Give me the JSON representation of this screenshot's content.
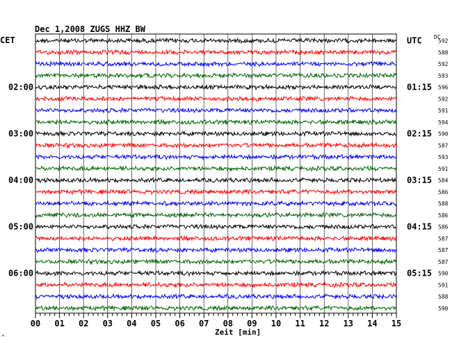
{
  "chart_data": {
    "type": "line",
    "title": "Dec 1,2008   ZUGS HHZ BW",
    "left_axis_label": "CET",
    "right_axis_label": "UTC",
    "right_column_label": "DC",
    "xlabel": "Zeit [min]",
    "xlim": [
      0,
      15
    ],
    "x_ticks": [
      "00",
      "01",
      "02",
      "03",
      "04",
      "05",
      "06",
      "07",
      "08",
      "09",
      "10",
      "11",
      "12",
      "13",
      "14",
      "15"
    ],
    "trace_colors": [
      "#000000",
      "#ff0000",
      "#0000ff",
      "#006400"
    ],
    "cet_labels": [
      {
        "row": 4,
        "text": "02:00"
      },
      {
        "row": 8,
        "text": "03:00"
      },
      {
        "row": 12,
        "text": "04:00"
      },
      {
        "row": 16,
        "text": "05:00"
      },
      {
        "row": 20,
        "text": "06:00"
      }
    ],
    "utc_labels": [
      {
        "row": 0,
        "text": "UTC"
      },
      {
        "row": 4,
        "text": "01:15"
      },
      {
        "row": 8,
        "text": "02:15"
      },
      {
        "row": 12,
        "text": "03:15"
      },
      {
        "row": 16,
        "text": "04:15"
      },
      {
        "row": 20,
        "text": "05:15"
      }
    ],
    "dc_offsets": [
      592,
      588,
      592,
      593,
      596,
      592,
      591,
      594,
      590,
      587,
      593,
      591,
      584,
      586,
      588,
      586,
      586,
      587,
      587,
      587,
      590,
      591,
      588,
      590
    ],
    "n_traces": 24,
    "grid": true,
    "footer_mark": "^"
  }
}
